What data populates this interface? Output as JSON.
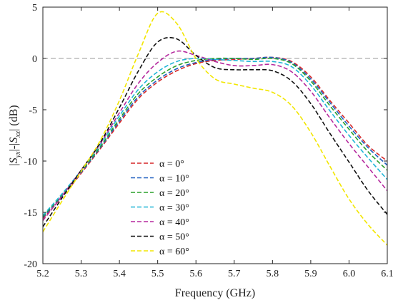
{
  "chart_data": {
    "type": "line",
    "title": "",
    "xlabel": "Frequency (GHz)",
    "ylabel": "|S_yx|-|S_xx| (dB)",
    "xlim": [
      5.2,
      6.1
    ],
    "ylim": [
      -20,
      5
    ],
    "xticks": [
      5.2,
      5.3,
      5.4,
      5.5,
      5.6,
      5.7,
      5.8,
      5.9,
      6.0,
      6.1
    ],
    "xtick_labels": [
      "5.2",
      "5.3",
      "5.4",
      "5.5",
      "5.6",
      "5.7",
      "5.8",
      "5.9",
      "6.0",
      "6.1"
    ],
    "yticks": [
      5,
      0,
      -5,
      -10,
      -15,
      -20
    ],
    "ytick_labels": [
      "5",
      "0",
      "-5",
      "-10",
      "-15",
      "-20"
    ],
    "reference_line": {
      "y": 0,
      "color": "#999999",
      "style": "dashed"
    },
    "grid": false,
    "legend_position": "lower-left",
    "series": [
      {
        "name": "α = 0°",
        "color": "#d62728",
        "x": [
          5.2,
          5.25,
          5.3,
          5.35,
          5.4,
          5.45,
          5.5,
          5.55,
          5.6,
          5.65,
          5.7,
          5.75,
          5.8,
          5.85,
          5.9,
          5.95,
          6.0,
          6.05,
          6.1
        ],
        "y": [
          -15.6,
          -13.5,
          -11.2,
          -8.8,
          -6.3,
          -3.9,
          -2.3,
          -1.2,
          -0.5,
          -0.2,
          -0.1,
          0.0,
          0.1,
          -0.3,
          -1.8,
          -4.1,
          -6.3,
          -8.5,
          -10.0
        ]
      },
      {
        "name": "α = 10°",
        "color": "#1f5fbf",
        "x": [
          5.2,
          5.25,
          5.3,
          5.35,
          5.4,
          5.45,
          5.5,
          5.55,
          5.6,
          5.65,
          5.7,
          5.75,
          5.8,
          5.85,
          5.9,
          5.95,
          6.0,
          6.05,
          6.1
        ],
        "y": [
          -15.5,
          -13.4,
          -11.1,
          -8.7,
          -6.1,
          -3.7,
          -2.1,
          -1.0,
          -0.4,
          -0.1,
          0.0,
          0.0,
          0.1,
          -0.4,
          -2.0,
          -4.3,
          -6.6,
          -8.7,
          -10.4
        ]
      },
      {
        "name": "α = 20°",
        "color": "#2ca02c",
        "x": [
          5.2,
          5.25,
          5.3,
          5.35,
          5.4,
          5.45,
          5.5,
          5.55,
          5.6,
          5.65,
          5.7,
          5.75,
          5.8,
          5.85,
          5.9,
          5.95,
          6.0,
          6.05,
          6.1
        ],
        "y": [
          -15.4,
          -13.3,
          -11.0,
          -8.6,
          -5.9,
          -3.4,
          -1.8,
          -0.7,
          -0.2,
          0.0,
          0.0,
          -0.1,
          0.0,
          -0.5,
          -2.2,
          -4.6,
          -6.9,
          -9.1,
          -10.9
        ]
      },
      {
        "name": "α = 30°",
        "color": "#1fb5d6",
        "x": [
          5.2,
          5.25,
          5.3,
          5.35,
          5.4,
          5.45,
          5.5,
          5.55,
          5.6,
          5.65,
          5.7,
          5.75,
          5.8,
          5.85,
          5.9,
          5.95,
          6.0,
          6.05,
          6.1
        ],
        "y": [
          -15.3,
          -13.2,
          -10.9,
          -8.4,
          -5.6,
          -3.0,
          -1.3,
          -0.3,
          0.0,
          -0.1,
          -0.2,
          -0.3,
          -0.3,
          -0.8,
          -2.6,
          -5.1,
          -7.5,
          -9.7,
          -11.8
        ]
      },
      {
        "name": "α = 40°",
        "color": "#b5299e",
        "x": [
          5.2,
          5.25,
          5.3,
          5.35,
          5.4,
          5.45,
          5.5,
          5.55,
          5.6,
          5.65,
          5.7,
          5.75,
          5.8,
          5.85,
          5.9,
          5.95,
          6.0,
          6.05,
          6.1
        ],
        "y": [
          -15.8,
          -13.4,
          -10.9,
          -8.3,
          -5.3,
          -2.4,
          -0.4,
          0.7,
          0.3,
          -0.3,
          -0.7,
          -0.7,
          -0.6,
          -1.3,
          -3.2,
          -5.8,
          -8.3,
          -10.6,
          -12.9
        ]
      },
      {
        "name": "α = 50°",
        "color": "#111111",
        "x": [
          5.2,
          5.25,
          5.3,
          5.35,
          5.4,
          5.45,
          5.5,
          5.55,
          5.6,
          5.65,
          5.7,
          5.75,
          5.8,
          5.85,
          5.9,
          5.95,
          6.0,
          6.05,
          6.1
        ],
        "y": [
          -16.4,
          -13.6,
          -10.9,
          -8.2,
          -4.8,
          -1.2,
          1.6,
          1.9,
          0.3,
          -0.9,
          -1.1,
          -1.1,
          -1.2,
          -2.2,
          -4.4,
          -7.3,
          -10.1,
          -12.9,
          -15.2
        ]
      },
      {
        "name": "α = 60°",
        "color": "#f2e600",
        "x": [
          5.2,
          5.25,
          5.3,
          5.35,
          5.4,
          5.45,
          5.5,
          5.55,
          5.6,
          5.65,
          5.7,
          5.75,
          5.8,
          5.85,
          5.9,
          5.95,
          6.0,
          6.05,
          6.1
        ],
        "y": [
          -16.9,
          -13.9,
          -11.0,
          -8.0,
          -4.1,
          0.5,
          4.4,
          3.4,
          0.0,
          -2.0,
          -2.5,
          -2.9,
          -3.3,
          -4.6,
          -7.2,
          -10.5,
          -13.7,
          -16.2,
          -18.2
        ]
      }
    ]
  }
}
